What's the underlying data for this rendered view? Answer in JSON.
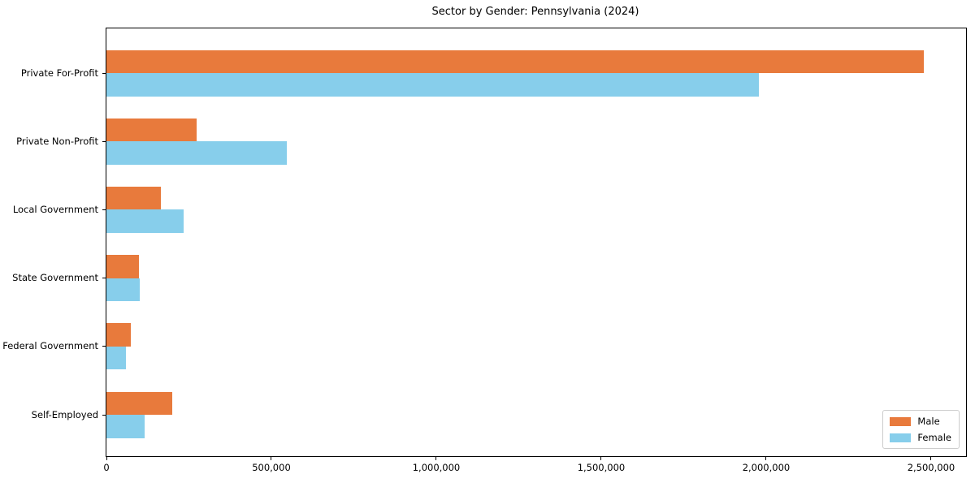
{
  "chart_data": {
    "type": "bar",
    "orientation": "horizontal",
    "title": "Sector by Gender: Pennsylvania (2024)",
    "categories": [
      "Private For-Profit",
      "Private Non-Profit",
      "Local Government",
      "State Government",
      "Federal Government",
      "Self-Employed"
    ],
    "series": [
      {
        "name": "Male",
        "color": "#e87a3c",
        "values": [
          2478000,
          273000,
          165000,
          98000,
          74000,
          200000
        ]
      },
      {
        "name": "Female",
        "color": "#87ceeb",
        "values": [
          1978000,
          547000,
          234000,
          100000,
          59000,
          116000
        ]
      }
    ],
    "xlabel": "",
    "ylabel": "",
    "xlim": [
      0,
      2606000
    ],
    "x_ticks": [
      0,
      500000,
      1000000,
      1500000,
      2000000,
      2500000
    ],
    "x_tick_labels": [
      "0",
      "500,000",
      "1,000,000",
      "1,500,000",
      "2,000,000",
      "2,500,000"
    ],
    "legend_position": "lower right",
    "grid": false,
    "colors": {
      "background": "#ffffff",
      "spine": "#000000",
      "text": "#000000",
      "legend_border": "#cccccc"
    }
  }
}
